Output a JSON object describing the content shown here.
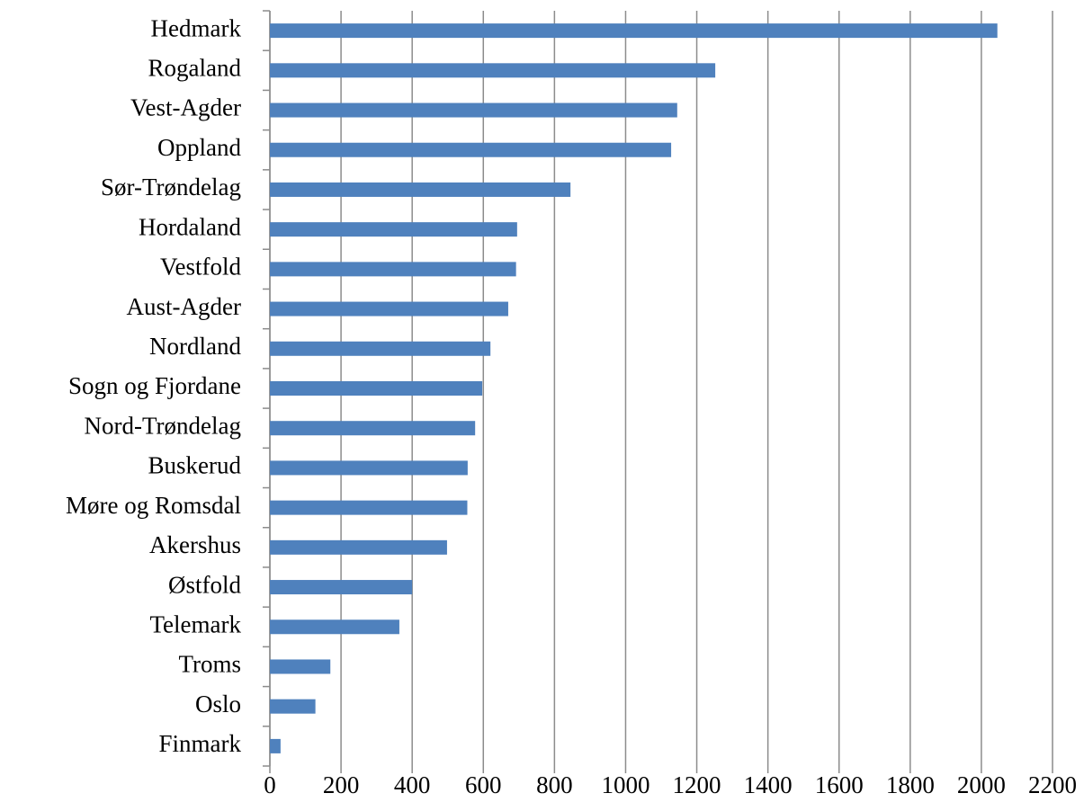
{
  "chart_data": {
    "type": "hbar",
    "categories": [
      "Hedmark",
      "Rogaland",
      "Vest-Agder",
      "Oppland",
      "Sør-Trøndelag",
      "Hordaland",
      "Vestfold",
      "Aust-Agder",
      "Nordland",
      "Sogn og Fjordane",
      "Nord-Trøndelag",
      "Buskerud",
      "Møre og Romsdal",
      "Akershus",
      "Østfold",
      "Telemark",
      "Troms",
      "Oslo",
      "Finmark"
    ],
    "values": [
      2045,
      1252,
      1145,
      1128,
      845,
      695,
      692,
      670,
      620,
      597,
      577,
      556,
      555,
      498,
      400,
      364,
      170,
      128,
      30
    ],
    "color": "#4f81bd",
    "xlim": [
      0,
      2200
    ],
    "xticks": [
      0,
      200,
      400,
      600,
      800,
      1000,
      1200,
      1400,
      1600,
      1800,
      2000,
      2200
    ],
    "grid": true
  }
}
